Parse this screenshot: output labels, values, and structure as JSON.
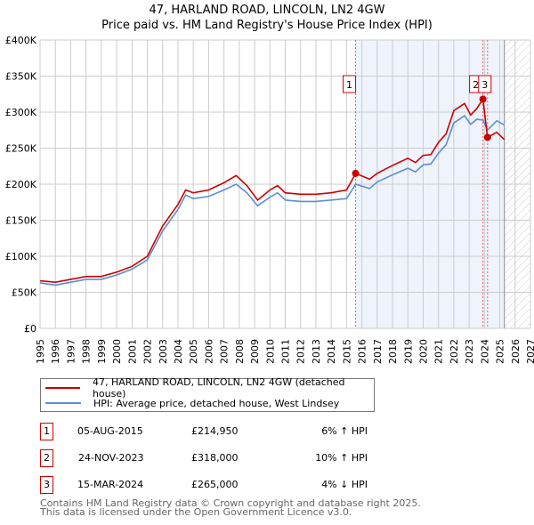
{
  "chart_data": {
    "type": "line",
    "title": "47, HARLAND ROAD, LINCOLN, LN2 4GW",
    "subtitle": "Price paid vs. HM Land Registry's House Price Index (HPI)",
    "ylim": [
      0,
      400000
    ],
    "xlim": [
      1995,
      2027
    ],
    "y_ticks": [
      0,
      50000,
      100000,
      150000,
      200000,
      250000,
      300000,
      350000,
      400000
    ],
    "y_tick_labels": [
      "£0",
      "£50K",
      "£100K",
      "£150K",
      "£200K",
      "£250K",
      "£300K",
      "£350K",
      "£400K"
    ],
    "x_tick_labels": [
      "1995",
      "1996",
      "1997",
      "1998",
      "1999",
      "2000",
      "2001",
      "2002",
      "2003",
      "2004",
      "2005",
      "2006",
      "2007",
      "2008",
      "2009",
      "2010",
      "2011",
      "2012",
      "2013",
      "2014",
      "2015",
      "2016",
      "2017",
      "2018",
      "2019",
      "2020",
      "2021",
      "2022",
      "2023",
      "2024",
      "2025",
      "2026",
      "2027"
    ],
    "grid": true,
    "shaded_from": 2015.6,
    "hatched_from": 2025.3,
    "x": [
      1995,
      1996,
      1997,
      1998,
      1999,
      2000,
      2001,
      2002,
      2003,
      2004,
      2004.5,
      2005,
      2006,
      2007,
      2007.8,
      2008.5,
      2009.2,
      2010,
      2010.5,
      2011,
      2012,
      2013,
      2014,
      2015,
      2015.6,
      2016.5,
      2017,
      2018,
      2019,
      2019.5,
      2020,
      2020.5,
      2021,
      2021.5,
      2022,
      2022.7,
      2023.1,
      2023.5,
      2023.9,
      2024.2,
      2024.8,
      2025.3
    ],
    "series": [
      {
        "name": "47, HARLAND ROAD, LINCOLN, LN2 4GW (detached house)",
        "color": "#cc0000",
        "values": [
          66000,
          64000,
          68000,
          72000,
          72000,
          78000,
          86000,
          100000,
          142000,
          172000,
          192000,
          188000,
          192000,
          202000,
          212000,
          198000,
          178000,
          192000,
          198000,
          188000,
          186000,
          186000,
          188000,
          192000,
          215000,
          207000,
          215000,
          226000,
          236000,
          230000,
          240000,
          241000,
          258000,
          270000,
          302000,
          312000,
          296000,
          305000,
          318000,
          265000,
          272000,
          262000
        ]
      },
      {
        "name": "HPI: Average price, detached house, West Lindsey",
        "color": "#5b8fd0",
        "values": [
          63000,
          60000,
          64000,
          68000,
          68000,
          74000,
          82000,
          95000,
          135000,
          165000,
          185000,
          180000,
          183000,
          192000,
          200000,
          188000,
          170000,
          182000,
          188000,
          178000,
          176000,
          176000,
          178000,
          180000,
          200000,
          194000,
          203000,
          213000,
          222000,
          217000,
          227000,
          228000,
          243000,
          255000,
          285000,
          295000,
          283000,
          290000,
          289000,
          275000,
          288000,
          282000
        ]
      }
    ],
    "sales": [
      {
        "id": "1",
        "x": 2015.59,
        "price": 214950,
        "date": "05-AUG-2015",
        "price_label": "£214,950",
        "hpi": "6% ↑ HPI"
      },
      {
        "id": "2",
        "x": 2023.9,
        "price": 318000,
        "date": "24-NOV-2023",
        "price_label": "£318,000",
        "hpi": "10% ↑ HPI"
      },
      {
        "id": "3",
        "x": 2024.2,
        "price": 265000,
        "date": "15-MAR-2024",
        "price_label": "£265,000",
        "hpi": "4% ↓ HPI"
      }
    ]
  },
  "footer": [
    "Contains HM Land Registry data © Crown copyright and database right 2025.",
    "This data is licensed under the Open Government Licence v3.0."
  ]
}
